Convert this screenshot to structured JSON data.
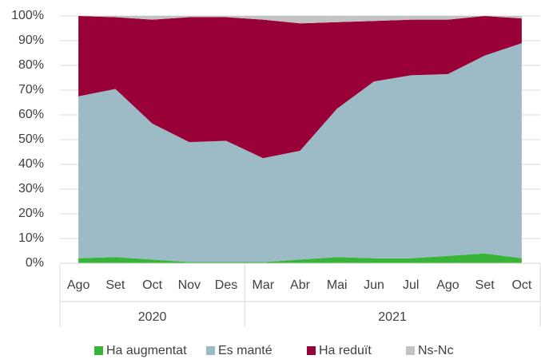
{
  "chart_data": {
    "type": "stacked_area",
    "groups": [
      {
        "label": "2020",
        "categories": [
          "Ago",
          "Set",
          "Oct",
          "Nov",
          "Des"
        ]
      },
      {
        "label": "2021",
        "categories": [
          "Mar",
          "Abr",
          "Mai",
          "Jun",
          "Jul",
          "Ago",
          "Set",
          "Oct"
        ]
      }
    ],
    "series": [
      {
        "name": "Ha augmentat",
        "color": "#38b538",
        "values": [
          2,
          2.5,
          1.5,
          0.5,
          0.5,
          0.5,
          1.5,
          2.5,
          2,
          2,
          3,
          4,
          2
        ]
      },
      {
        "name": "Es manté",
        "color": "#9dbbc7",
        "values": [
          65.5,
          68,
          55,
          48.5,
          49,
          42,
          44,
          60,
          71.5,
          74,
          73.5,
          80,
          87
        ]
      },
      {
        "name": "Ha reduït",
        "color": "#990038",
        "values": [
          32.5,
          29,
          42,
          50.5,
          50,
          56,
          51.5,
          35,
          24.5,
          22.5,
          22,
          16,
          10
        ]
      },
      {
        "name": "Ns-Nc",
        "color": "#c3c3c3",
        "values": [
          0,
          0.5,
          1.5,
          0.5,
          0.5,
          1.5,
          3,
          2.5,
          2,
          1.5,
          1.5,
          0,
          1
        ]
      }
    ],
    "ylim": [
      0,
      100
    ],
    "yticks": [
      {
        "value": 0,
        "label": "0%"
      },
      {
        "value": 10,
        "label": "10%"
      },
      {
        "value": 20,
        "label": "20%"
      },
      {
        "value": 30,
        "label": "30%"
      },
      {
        "value": 40,
        "label": "40%"
      },
      {
        "value": 50,
        "label": "50%"
      },
      {
        "value": 60,
        "label": "60%"
      },
      {
        "value": 70,
        "label": "70%"
      },
      {
        "value": 80,
        "label": "80%"
      },
      {
        "value": 90,
        "label": "90%"
      },
      {
        "value": 100,
        "label": "100%"
      }
    ],
    "grid": true,
    "legend": "bottom"
  }
}
